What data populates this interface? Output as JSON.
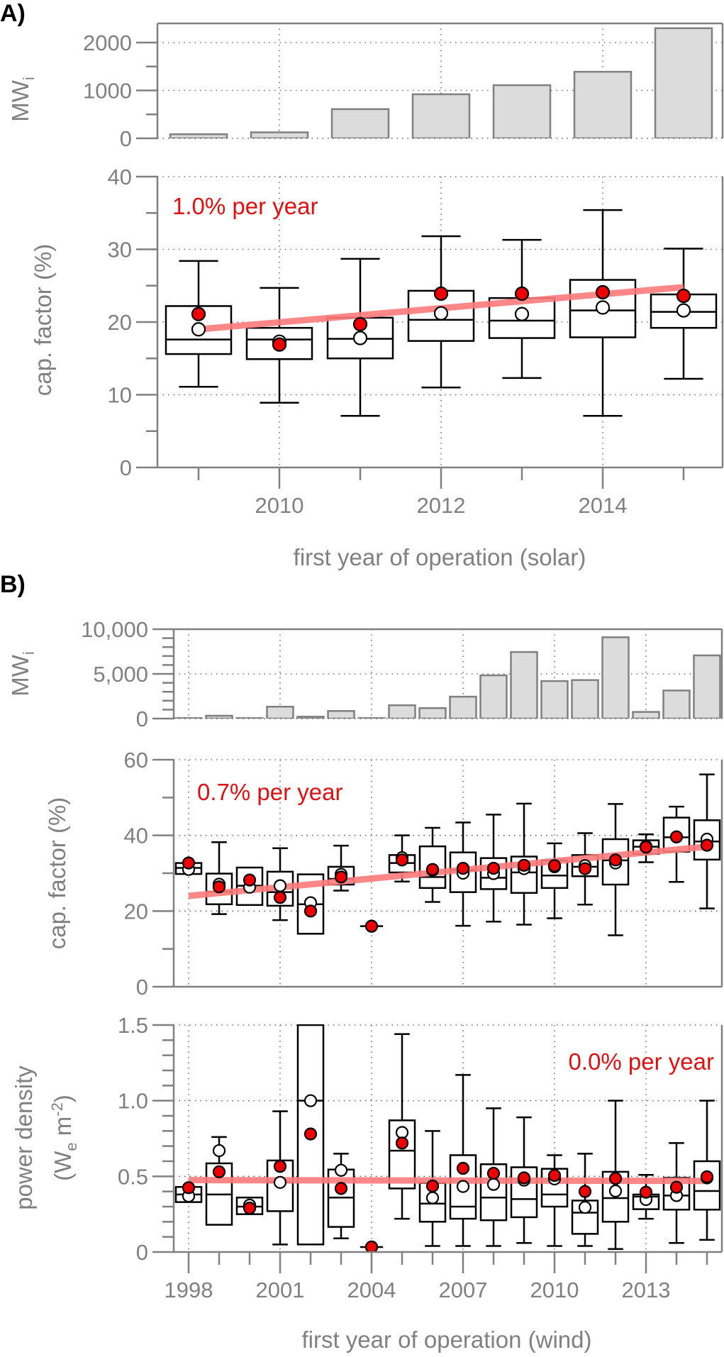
{
  "colors": {
    "mean": "#ee0000",
    "trend": "#ff7a7a",
    "trend_label": "#e01010",
    "bar_fill": "#dcdcdc",
    "axis": "#808080"
  },
  "chart_data": [
    {
      "id": "solar-mw",
      "panel_label": "A)",
      "type": "bar",
      "title": "",
      "ylabel": "MW",
      "ylabel_sub": "i",
      "categories": [
        2009,
        2010,
        2011,
        2012,
        2013,
        2014,
        2015
      ],
      "values": [
        85,
        125,
        610,
        920,
        1110,
        1390,
        2300
      ],
      "ylim": [
        0,
        2400
      ],
      "yticks": [
        0,
        1000,
        2000
      ],
      "ytick_labels": [
        "0",
        "1000",
        "2000"
      ],
      "grid": true
    },
    {
      "id": "solar-cf",
      "type": "box",
      "xlabel": "first year of operation (solar)",
      "ylabel": "cap. factor (%)",
      "ylim": [
        0,
        40
      ],
      "yticks": [
        0,
        10,
        20,
        30,
        40
      ],
      "ytick_labels": [
        "0",
        "10",
        "20",
        "30",
        "40"
      ],
      "xticks_labeled": [
        2010,
        2012,
        2014
      ],
      "xtick_labels": [
        "2010",
        "2012",
        "2014"
      ],
      "trend_label": "1.0% per year",
      "trend": {
        "x": [
          2009,
          2015
        ],
        "y": [
          19.0,
          24.8
        ]
      },
      "categories": [
        2009,
        2010,
        2011,
        2012,
        2013,
        2014,
        2015
      ],
      "boxes": [
        {
          "x": 2009,
          "whislo": 11.1,
          "q1": 15.6,
          "med": 17.6,
          "q3": 22.2,
          "whishi": 28.4,
          "mean_cap": 21.1,
          "mean_plant": 19.0
        },
        {
          "x": 2010,
          "whislo": 8.9,
          "q1": 14.9,
          "med": 17.6,
          "q3": 19.2,
          "whishi": 24.7,
          "mean_cap": 16.9,
          "mean_plant": 17.3
        },
        {
          "x": 2011,
          "whislo": 7.1,
          "q1": 15.0,
          "med": 17.7,
          "q3": 20.6,
          "whishi": 28.7,
          "mean_cap": 19.7,
          "mean_plant": 17.8
        },
        {
          "x": 2012,
          "whislo": 11.0,
          "q1": 17.4,
          "med": 20.3,
          "q3": 24.3,
          "whishi": 31.8,
          "mean_cap": 23.9,
          "mean_plant": 21.2
        },
        {
          "x": 2013,
          "whislo": 12.3,
          "q1": 17.8,
          "med": 20.2,
          "q3": 23.3,
          "whishi": 31.3,
          "mean_cap": 23.9,
          "mean_plant": 21.1
        },
        {
          "x": 2014,
          "whislo": 7.1,
          "q1": 17.9,
          "med": 21.6,
          "q3": 25.8,
          "whishi": 35.4,
          "mean_cap": 24.1,
          "mean_plant": 22.0
        },
        {
          "x": 2015,
          "whislo": 12.2,
          "q1": 19.2,
          "med": 21.4,
          "q3": 23.8,
          "whishi": 30.1,
          "mean_cap": 23.6,
          "mean_plant": 21.6
        }
      ]
    },
    {
      "id": "wind-mw",
      "panel_label": "B)",
      "type": "bar",
      "ylabel": "MW",
      "ylabel_sub": "i",
      "categories": [
        1998,
        1999,
        2000,
        2001,
        2002,
        2003,
        2004,
        2005,
        2006,
        2007,
        2008,
        2009,
        2010,
        2011,
        2012,
        2013,
        2014,
        2015
      ],
      "values": [
        50,
        320,
        50,
        1330,
        210,
        850,
        50,
        1490,
        1170,
        2450,
        4840,
        7450,
        4200,
        4310,
        9100,
        745,
        3140,
        7070
      ],
      "ylim": [
        0,
        10000
      ],
      "yticks": [
        0,
        5000,
        10000
      ],
      "ytick_labels": [
        "0",
        "5,000",
        "10,000"
      ],
      "grid": true
    },
    {
      "id": "wind-cf",
      "type": "box",
      "ylabel": "cap. factor (%)",
      "ylim": [
        0,
        60
      ],
      "yticks": [
        0,
        20,
        40,
        60
      ],
      "ytick_labels": [
        "0",
        "20",
        "40",
        "60"
      ],
      "trend_label": "0.7% per year",
      "trend": {
        "x": [
          1998,
          2015
        ],
        "y": [
          24.0,
          37.0
        ]
      },
      "boxes": [
        {
          "x": 1998,
          "whislo": 29.8,
          "q1": 29.8,
          "med": 31.4,
          "q3": 32.7,
          "whishi": 32.7,
          "mean_cap": 32.7,
          "mean_plant": 31.0
        },
        {
          "x": 1999,
          "whislo": 19.2,
          "q1": 21.8,
          "med": 25.1,
          "q3": 29.9,
          "whishi": 38.2,
          "mean_cap": 26.4,
          "mean_plant": 27.1
        },
        {
          "x": 2000,
          "whislo": 21.6,
          "q1": 21.6,
          "med": 26.7,
          "q3": 31.5,
          "whishi": 31.5,
          "mean_cap": 28.2,
          "mean_plant": 26.3
        },
        {
          "x": 2001,
          "whislo": 17.6,
          "q1": 21.4,
          "med": 25.0,
          "q3": 30.4,
          "whishi": 36.6,
          "mean_cap": 23.6,
          "mean_plant": 26.7
        },
        {
          "x": 2002,
          "whislo": 14.0,
          "q1": 14.0,
          "med": 21.8,
          "q3": 29.7,
          "whishi": 29.7,
          "mean_cap": 20.0,
          "mean_plant": 22.2
        },
        {
          "x": 2003,
          "whislo": 25.4,
          "q1": 27.0,
          "med": 28.5,
          "q3": 31.7,
          "whishi": 37.3,
          "mean_cap": 29.0,
          "mean_plant": 29.7
        },
        {
          "x": 2004,
          "whislo": 16.0,
          "q1": 16.0,
          "med": 16.0,
          "q3": 16.0,
          "whishi": 16.0,
          "mean_cap": 16.0,
          "mean_plant": 16.0
        },
        {
          "x": 2005,
          "whislo": 27.8,
          "q1": 30.2,
          "med": 32.7,
          "q3": 34.8,
          "whishi": 40.0,
          "mean_cap": 33.5,
          "mean_plant": 34.1
        },
        {
          "x": 2006,
          "whislo": 22.4,
          "q1": 26.1,
          "med": 29.0,
          "q3": 37.1,
          "whishi": 42.0,
          "mean_cap": 31.0,
          "mean_plant": 30.8
        },
        {
          "x": 2007,
          "whislo": 16.1,
          "q1": 25.0,
          "med": 30.8,
          "q3": 35.5,
          "whishi": 43.4,
          "mean_cap": 31.3,
          "mean_plant": 30.0
        },
        {
          "x": 2008,
          "whislo": 17.2,
          "q1": 25.8,
          "med": 28.8,
          "q3": 34.0,
          "whishi": 45.5,
          "mean_cap": 31.3,
          "mean_plant": 29.9
        },
        {
          "x": 2009,
          "whislo": 16.4,
          "q1": 24.8,
          "med": 30.2,
          "q3": 34.4,
          "whishi": 48.4,
          "mean_cap": 32.1,
          "mean_plant": 31.2
        },
        {
          "x": 2010,
          "whislo": 18.1,
          "q1": 26.1,
          "med": 29.4,
          "q3": 33.4,
          "whishi": 37.9,
          "mean_cap": 32.0,
          "mean_plant": 31.7
        },
        {
          "x": 2011,
          "whislo": 21.7,
          "q1": 29.2,
          "med": 31.7,
          "q3": 34.8,
          "whishi": 40.6,
          "mean_cap": 31.2,
          "mean_plant": 32.0
        },
        {
          "x": 2012,
          "whislo": 13.6,
          "q1": 27.0,
          "med": 33.4,
          "q3": 39.0,
          "whishi": 48.3,
          "mean_cap": 33.5,
          "mean_plant": 32.7
        },
        {
          "x": 2013,
          "whislo": 32.9,
          "q1": 35.1,
          "med": 37.0,
          "q3": 38.7,
          "whishi": 40.3,
          "mean_cap": 36.9,
          "mean_plant": 37.1
        },
        {
          "x": 2014,
          "whislo": 27.7,
          "q1": 35.7,
          "med": 39.5,
          "q3": 44.7,
          "whishi": 47.6,
          "mean_cap": 39.6,
          "mean_plant": 39.6
        },
        {
          "x": 2015,
          "whislo": 20.7,
          "q1": 33.6,
          "med": 38.4,
          "q3": 44.0,
          "whishi": 56.1,
          "mean_cap": 37.4,
          "mean_plant": 39.0
        }
      ]
    },
    {
      "id": "wind-pd",
      "type": "box",
      "xlabel": "first year of operation (wind)",
      "ylabel_line1": "power density",
      "ylabel_line2_prefix": "(W",
      "ylabel_line2_sub": "e",
      "ylabel_line2_mid": " m",
      "ylabel_line2_sup": "-2",
      "ylabel_line2_suffix": ")",
      "ylim": [
        0,
        1.5
      ],
      "yticks": [
        0,
        0.5,
        1.0,
        1.5
      ],
      "ytick_labels": [
        "0",
        "0.5",
        "1.0",
        "1.5"
      ],
      "xticks_labeled": [
        1998,
        2001,
        2004,
        2007,
        2010,
        2013
      ],
      "xtick_labels": [
        "1998",
        "2001",
        "2004",
        "2007",
        "2010",
        "2013"
      ],
      "trend_label": "0.0% per year",
      "trend": {
        "x": [
          1998,
          2015
        ],
        "y": [
          0.475,
          0.47
        ]
      },
      "boxes": [
        {
          "x": 1998,
          "whislo": 0.33,
          "q1": 0.33,
          "med": 0.38,
          "q3": 0.43,
          "whishi": 0.43,
          "mean_cap": 0.425,
          "mean_plant": 0.37
        },
        {
          "x": 1999,
          "whislo": 0.18,
          "q1": 0.18,
          "med": 0.38,
          "q3": 0.586,
          "whishi": 0.76,
          "mean_cap": 0.53,
          "mean_plant": 0.67
        },
        {
          "x": 2000,
          "whislo": 0.25,
          "q1": 0.25,
          "med": 0.3,
          "q3": 0.36,
          "whishi": 0.36,
          "mean_cap": 0.29,
          "mean_plant": 0.31
        },
        {
          "x": 2001,
          "whislo": 0.05,
          "q1": 0.27,
          "med": 0.46,
          "q3": 0.605,
          "whishi": 0.93,
          "mean_cap": 0.566,
          "mean_plant": 0.46
        },
        {
          "x": 2002,
          "whislo": 0.05,
          "q1": 0.05,
          "med": 1.0,
          "q3": 1.6,
          "whishi": 1.6,
          "mean_cap": 0.78,
          "mean_plant": 1.0
        },
        {
          "x": 2003,
          "whislo": 0.09,
          "q1": 0.166,
          "med": 0.36,
          "q3": 0.545,
          "whishi": 0.65,
          "mean_cap": 0.42,
          "mean_plant": 0.54
        },
        {
          "x": 2004,
          "whislo": 0.033,
          "q1": 0.033,
          "med": 0.033,
          "q3": 0.033,
          "whishi": 0.033,
          "mean_cap": 0.033,
          "mean_plant": 0.033
        },
        {
          "x": 2005,
          "whislo": 0.22,
          "q1": 0.42,
          "med": 0.67,
          "q3": 0.87,
          "whishi": 1.44,
          "mean_cap": 0.72,
          "mean_plant": 0.79
        },
        {
          "x": 2006,
          "whislo": 0.04,
          "q1": 0.2,
          "med": 0.32,
          "q3": 0.456,
          "whishi": 0.8,
          "mean_cap": 0.436,
          "mean_plant": 0.358
        },
        {
          "x": 2007,
          "whislo": 0.04,
          "q1": 0.22,
          "med": 0.3,
          "q3": 0.64,
          "whishi": 1.17,
          "mean_cap": 0.553,
          "mean_plant": 0.433
        },
        {
          "x": 2008,
          "whislo": 0.04,
          "q1": 0.21,
          "med": 0.36,
          "q3": 0.58,
          "whishi": 0.95,
          "mean_cap": 0.52,
          "mean_plant": 0.447
        },
        {
          "x": 2009,
          "whislo": 0.06,
          "q1": 0.23,
          "med": 0.35,
          "q3": 0.56,
          "whishi": 0.89,
          "mean_cap": 0.49,
          "mean_plant": 0.475
        },
        {
          "x": 2010,
          "whislo": 0.04,
          "q1": 0.3,
          "med": 0.38,
          "q3": 0.55,
          "whishi": 0.64,
          "mean_cap": 0.506,
          "mean_plant": 0.483
        },
        {
          "x": 2011,
          "whislo": 0.04,
          "q1": 0.12,
          "med": 0.26,
          "q3": 0.34,
          "whishi": 0.65,
          "mean_cap": 0.4,
          "mean_plant": 0.295
        },
        {
          "x": 2012,
          "whislo": 0.02,
          "q1": 0.2,
          "med": 0.356,
          "q3": 0.53,
          "whishi": 1.0,
          "mean_cap": 0.486,
          "mean_plant": 0.403
        },
        {
          "x": 2013,
          "whislo": 0.22,
          "q1": 0.283,
          "med": 0.366,
          "q3": 0.38,
          "whishi": 0.51,
          "mean_cap": 0.395,
          "mean_plant": 0.347
        },
        {
          "x": 2014,
          "whislo": 0.06,
          "q1": 0.28,
          "med": 0.373,
          "q3": 0.49,
          "whishi": 0.72,
          "mean_cap": 0.428,
          "mean_plant": 0.373
        },
        {
          "x": 2015,
          "whislo": 0.08,
          "q1": 0.28,
          "med": 0.403,
          "q3": 0.6,
          "whishi": 1.0,
          "mean_cap": 0.497,
          "mean_plant": 0.49
        }
      ]
    }
  ]
}
